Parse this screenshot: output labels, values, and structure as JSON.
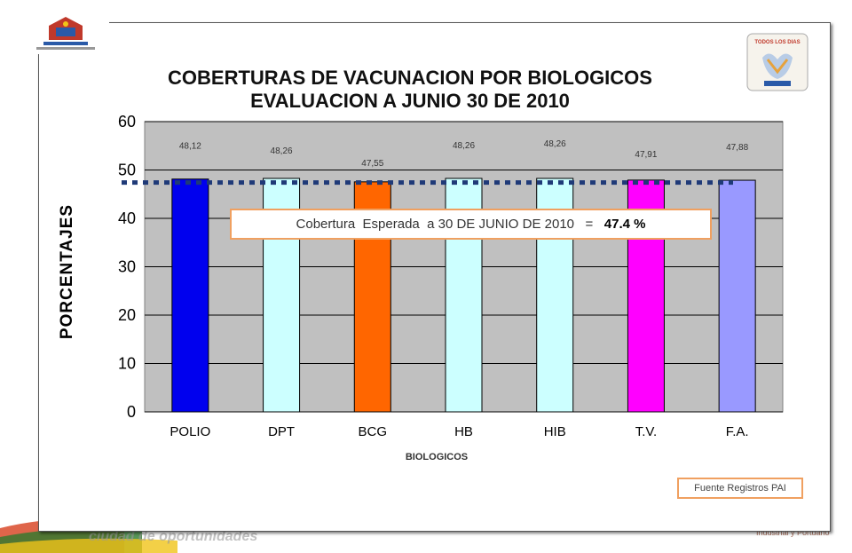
{
  "chart_data": {
    "type": "bar",
    "title": [
      "COBERTURAS DE VACUNACION POR BIOLOGICOS",
      "EVALUACION  A JUNIO 30 DE 2010"
    ],
    "xlabel": "BIOLOGICOS",
    "ylabel": "PORCENTAJES",
    "ylim": [
      0,
      60
    ],
    "yticks": [
      0,
      10,
      20,
      30,
      40,
      50,
      60
    ],
    "grid": true,
    "categories": [
      "POLIO",
      "DPT",
      "BCG",
      "HB",
      "HIB",
      "T.V.",
      "F.A."
    ],
    "values": [
      48.12,
      48.26,
      47.55,
      48.26,
      48.26,
      47.91,
      47.88
    ],
    "value_labels": [
      "48,12",
      "48,26",
      "47,55",
      "48,26",
      "48,26",
      "47,91",
      "47,88"
    ],
    "bar_colors": [
      "#0000ee",
      "#ccffff",
      "#ff6600",
      "#ccffff",
      "#ccffff",
      "#ff00ff",
      "#9999ff"
    ],
    "reference_line": {
      "value": 47.4,
      "style": "dotted",
      "color": "#1f3a78"
    },
    "annotation": {
      "text": "Cobertura  Esperada  a 30 DE JUNIO DE 2010   =   ",
      "value_text": "47.4 %"
    },
    "plot_background": "#c0c0c0"
  },
  "footer": {
    "source": "Fuente Registros PAI"
  },
  "logos": {
    "left": "alcaldia-barranquilla-logo",
    "right": "todos-los-dias-son-dias-de-vacunacion-logo"
  }
}
